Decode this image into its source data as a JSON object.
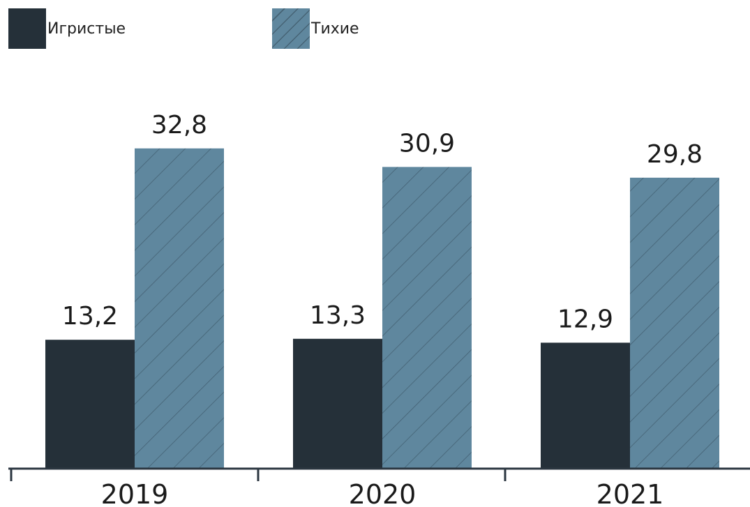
{
  "chart_data": {
    "type": "bar",
    "categories": [
      "2019",
      "2020",
      "2021"
    ],
    "series": [
      {
        "name": "Игристые",
        "values": [
          13.2,
          13.3,
          12.9
        ],
        "labels": [
          "13,2",
          "13,3",
          "12,9"
        ],
        "color": "#253039",
        "pattern": "solid"
      },
      {
        "name": "Тихие",
        "values": [
          32.8,
          30.9,
          29.8
        ],
        "labels": [
          "32,8",
          "30,9",
          "29,8"
        ],
        "color": "#5f879e",
        "pattern": "hatched"
      }
    ],
    "title": "",
    "xlabel": "",
    "ylabel": "",
    "ylim": [
      0,
      40
    ],
    "grid": false,
    "legend_position": "top-left"
  }
}
